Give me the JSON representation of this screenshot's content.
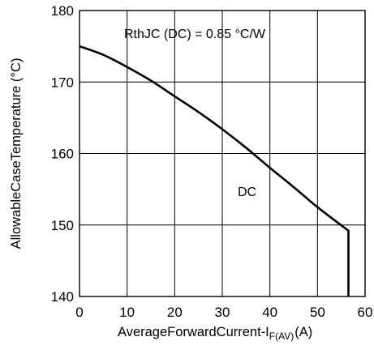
{
  "chart_data": {
    "type": "line",
    "xlabel_main": "AverageForwardCurrent-I",
    "xlabel_sub": "F(AV)",
    "xlabel_unit": "(A)",
    "ylabel": "AllowableCaseTemperature (°C)",
    "xlim": [
      0,
      60
    ],
    "ylim": [
      140,
      180
    ],
    "xticks": [
      "0",
      "10",
      "20",
      "30",
      "40",
      "50",
      "60"
    ],
    "yticks": [
      "140",
      "150",
      "160",
      "170",
      "180"
    ],
    "grid": true,
    "annotations": {
      "rth": "RthJC (DC) = 0.85 °C/W",
      "series_label": "DC"
    },
    "series": [
      {
        "name": "DC",
        "x": [
          0,
          5,
          10,
          15,
          20,
          25,
          30,
          35,
          40,
          45,
          50,
          56.5,
          56.5
        ],
        "y": [
          175,
          173.8,
          172.1,
          170.2,
          168.0,
          165.8,
          163.4,
          160.8,
          158.0,
          155.3,
          152.5,
          149.2,
          140
        ]
      }
    ]
  }
}
